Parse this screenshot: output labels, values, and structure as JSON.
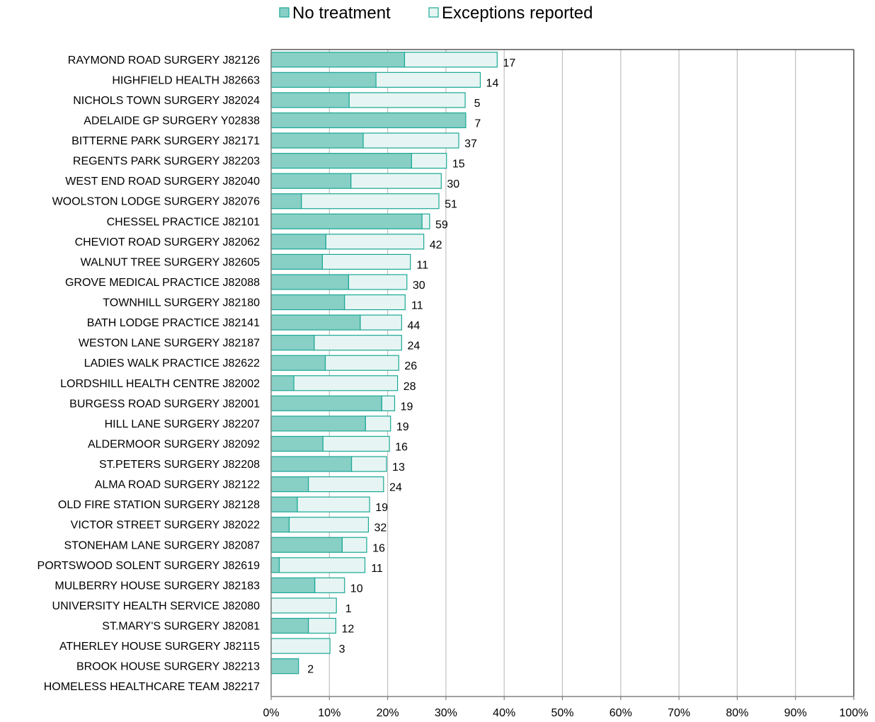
{
  "chart_data": {
    "type": "bar",
    "orientation": "horizontal",
    "stacked": true,
    "categories": [
      "RAYMOND ROAD SURGERY J82126",
      "HIGHFIELD HEALTH J82663",
      "NICHOLS TOWN SURGERY J82024",
      "ADELAIDE GP SURGERY Y02838",
      "BITTERNE PARK SURGERY J82171",
      "REGENTS PARK SURGERY J82203",
      "WEST END ROAD SURGERY J82040",
      "WOOLSTON LODGE SURGERY J82076",
      "CHESSEL PRACTICE J82101",
      "CHEVIOT ROAD SURGERY J82062",
      "WALNUT TREE SURGERY J82605",
      "GROVE MEDICAL PRACTICE J82088",
      "TOWNHILL SURGERY J82180",
      "BATH LODGE PRACTICE J82141",
      "WESTON LANE SURGERY J82187",
      "LADIES WALK PRACTICE J82622",
      "LORDSHILL HEALTH CENTRE J82002",
      "BURGESS ROAD SURGERY J82001",
      "HILL LANE SURGERY J82207",
      "ALDERMOOR SURGERY J82092",
      "ST.PETERS SURGERY J82208",
      "ALMA ROAD SURGERY J82122",
      "OLD FIRE STATION SURGERY J82128",
      "VICTOR STREET SURGERY J82022",
      "STONEHAM LANE SURGERY J82087",
      "PORTSWOOD SOLENT SURGERY J82619",
      "MULBERRY HOUSE SURGERY J82183",
      "UNIVERSITY HEALTH SERVICE J82080",
      "ST.MARY'S SURGERY J82081",
      "ATHERLEY HOUSE SURGERY J82115",
      "BROOK HOUSE SURGERY J82213",
      "HOMELESS HEALTHCARE TEAM J82217"
    ],
    "series": [
      {
        "name": "No treatment",
        "color": "#88CFC6",
        "values": [
          22.9,
          18.0,
          13.4,
          33.4,
          15.8,
          24.1,
          13.7,
          5.2,
          25.9,
          9.4,
          8.8,
          13.3,
          12.6,
          15.3,
          7.4,
          9.3,
          3.9,
          19.0,
          16.2,
          8.9,
          13.8,
          6.4,
          4.5,
          3.1,
          12.2,
          1.4,
          7.5,
          0,
          6.4,
          0,
          4.7,
          0
        ]
      },
      {
        "name": "Exceptions reported",
        "color": "#E6F5F3",
        "values": [
          15.9,
          17.9,
          19.9,
          0,
          16.4,
          6.0,
          15.5,
          23.6,
          1.3,
          16.8,
          15.1,
          10.0,
          10.4,
          7.1,
          15.0,
          12.6,
          17.8,
          2.2,
          4.3,
          11.4,
          6.0,
          12.9,
          12.4,
          13.6,
          4.2,
          14.7,
          5.1,
          11.2,
          4.7,
          10.1,
          0,
          0
        ]
      }
    ],
    "data_labels": [
      "17",
      "14",
      "5",
      "7",
      "37",
      "15",
      "30",
      "51",
      "59",
      "42",
      "11",
      "30",
      "11",
      "44",
      "24",
      "26",
      "28",
      "19",
      "19",
      "16",
      "13",
      "24",
      "19",
      "32",
      "16",
      "11",
      "10",
      "1",
      "12",
      "3",
      "2",
      ""
    ],
    "xlim": [
      0,
      100
    ],
    "x_ticks": [
      "0%",
      "10%",
      "20%",
      "30%",
      "40%",
      "50%",
      "60%",
      "70%",
      "80%",
      "90%",
      "100%"
    ],
    "grid": "vertical",
    "legend_position": "top-center",
    "bar_outline_color": "#1AA894",
    "grid_color": "#C0C0C0"
  }
}
